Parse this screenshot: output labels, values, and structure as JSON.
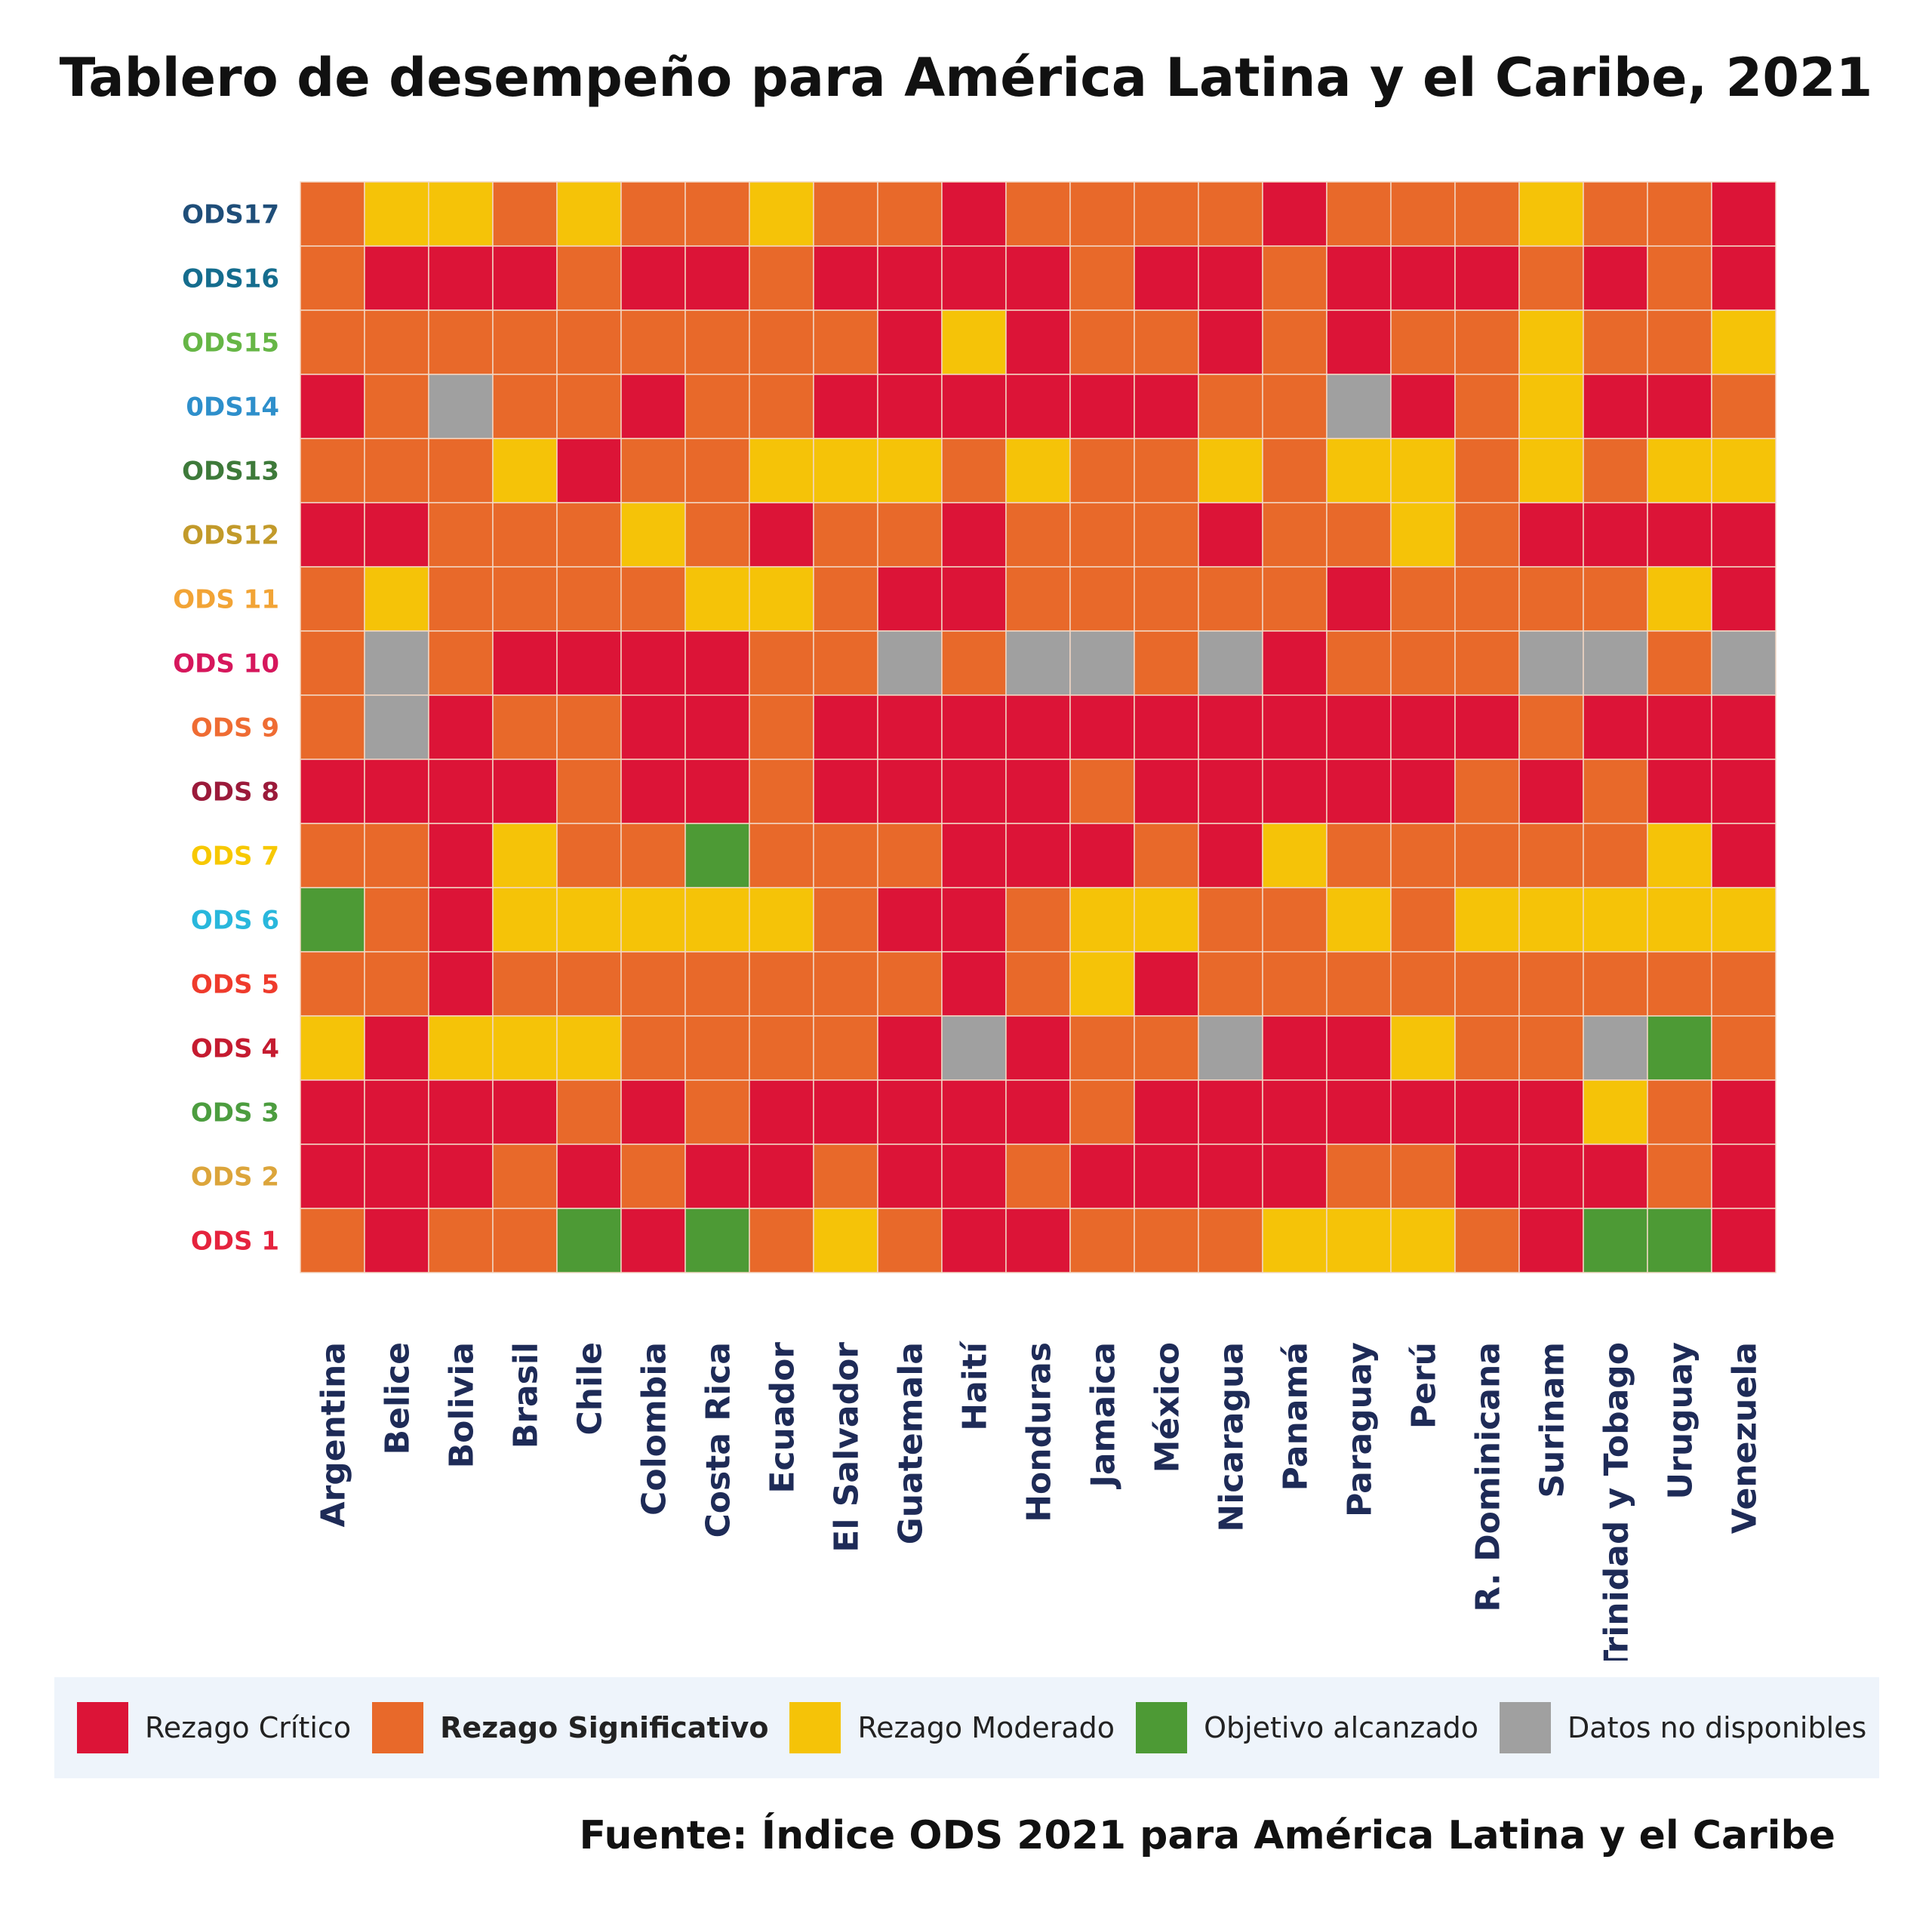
{
  "title": "Tablero de desempeño para América Latina y el Caribe, 2021",
  "source": "Fuente: Índice ODS 2021 para América Latina y el Caribe",
  "colors": {
    "C": "#dc1437",
    "S": "#e8692a",
    "M": "#f5c308",
    "A": "#4d9a35",
    "N": "#a0a0a0"
  },
  "legend": [
    {
      "key": "C",
      "label": "Rezago Crítico",
      "bold": false
    },
    {
      "key": "S",
      "label": "Rezago Significativo",
      "bold": true
    },
    {
      "key": "M",
      "label": "Rezago Moderado",
      "bold": false
    },
    {
      "key": "A",
      "label": "Objetivo alcanzado",
      "bold": false
    },
    {
      "key": "N",
      "label": "Datos no disponibles",
      "bold": false
    }
  ],
  "chart_data": {
    "type": "heatmap",
    "title": "Tablero de desempeño para América Latina y el Caribe, 2021",
    "columns": [
      "Argentina",
      "Belice",
      "Bolivia",
      "Brasil",
      "Chile",
      "Colombia",
      "Costa Rica",
      "Ecuador",
      "El Salvador",
      "Guatemala",
      "Haití",
      "Honduras",
      "Jamaica",
      "México",
      "Nicaragua",
      "Panamá",
      "Paraguay",
      "Perú",
      "R. Dominicana",
      "Surinam",
      "Trinidad y Tobago",
      "Uruguay",
      "Venezuela"
    ],
    "rows": [
      {
        "label": "ODS17",
        "color": "#1f4e79",
        "cells": "SMMSMSSMSSCSSSSCSSSMSSC"
      },
      {
        "label": "ODS16",
        "color": "#156d8e",
        "cells": "SCCCSCCSCCCCSCCSCCCSCSC"
      },
      {
        "label": "ODS15",
        "color": "#66b646",
        "cells": "SSSSSSSSSCMCSSCSCSSMSSM"
      },
      {
        "label": "0DS14",
        "color": "#2e8fcb",
        "cells": "CSNSSCSSCCCCCCSSNCSMCCS"
      },
      {
        "label": "ODS13",
        "color": "#3e7a3a",
        "cells": "SSSMCSSMMMSMSSMSMMSMSMM"
      },
      {
        "label": "ODS12",
        "color": "#c29a2a",
        "cells": "CCSSSMSCSSCSSSCSSMSCCCC"
      },
      {
        "label": "ODS 11",
        "color": "#f2a436",
        "cells": "SMSSSSMMSCCSSSSSCSSSSMC"
      },
      {
        "label": "ODS 10",
        "color": "#d6175c",
        "cells": "SNSCCCCSSNSNNSNCSSSNNSN"
      },
      {
        "label": "ODS 9",
        "color": "#ef6c33",
        "cells": "SNCSSCCSCCCCCCCCCCCSCCC"
      },
      {
        "label": "ODS 8",
        "color": "#9b1a3a",
        "cells": "CCCCSCCSCCCCSCCCCCSCSCC"
      },
      {
        "label": "ODS 7",
        "color": "#f7c800",
        "cells": "SSCMSSASSSCCCSCMSSSSSMC"
      },
      {
        "label": "ODS 6",
        "color": "#29b7dc",
        "cells": "ASCMMMMMSCCSMMSSMSMMMMM"
      },
      {
        "label": "ODS 5",
        "color": "#ef3b2c",
        "cells": "SSCSSSSSSSCSMCSSSSSSSSS"
      },
      {
        "label": "ODS 4",
        "color": "#c51b30",
        "cells": "MCMMMSSSSCNCSSNCCMSSNAS"
      },
      {
        "label": "ODS 3",
        "color": "#4c9d3f",
        "cells": "CCCCSCSCCCCCSCCCCCCCMSC"
      },
      {
        "label": "ODS 2",
        "color": "#dca53b",
        "cells": "CCCSCSCCSCCSCCCCSSCCCSC"
      },
      {
        "label": "ODS 1",
        "color": "#e5233d",
        "cells": "SCSSACASMSCCSSSMMMSCAAC"
      }
    ]
  }
}
